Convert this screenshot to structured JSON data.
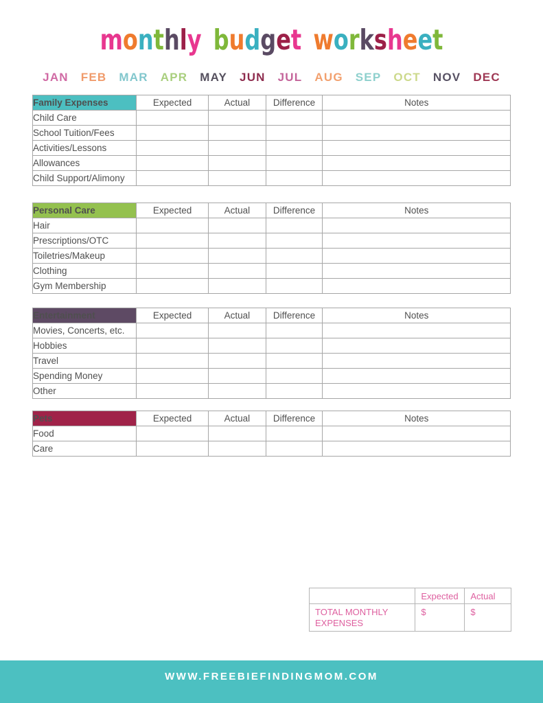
{
  "title": {
    "text": "monthly budget worksheet",
    "words": [
      {
        "letters": [
          {
            "c": "m",
            "color": "#e8378f"
          },
          {
            "c": "o",
            "color": "#ef7b2e"
          },
          {
            "c": "n",
            "color": "#3ab0c0"
          },
          {
            "c": "t",
            "color": "#7fb83a"
          },
          {
            "c": "h",
            "color": "#5a4a63"
          },
          {
            "c": "l",
            "color": "#9c2048"
          },
          {
            "c": "y",
            "color": "#e8378f"
          }
        ]
      },
      {
        "letters": [
          {
            "c": "b",
            "color": "#7fb83a"
          },
          {
            "c": "u",
            "color": "#ef7b2e"
          },
          {
            "c": "d",
            "color": "#3ab0c0"
          },
          {
            "c": "g",
            "color": "#5a4a63"
          },
          {
            "c": "e",
            "color": "#9c2048"
          },
          {
            "c": "t",
            "color": "#e8378f"
          }
        ]
      },
      {
        "letters": [
          {
            "c": "w",
            "color": "#ef7b2e"
          },
          {
            "c": "o",
            "color": "#3ab0c0"
          },
          {
            "c": "r",
            "color": "#7fb83a"
          },
          {
            "c": "k",
            "color": "#5a4a63"
          },
          {
            "c": "s",
            "color": "#9c2048"
          },
          {
            "c": "h",
            "color": "#e8378f"
          },
          {
            "c": "e",
            "color": "#ef7b2e"
          },
          {
            "c": "e",
            "color": "#3ab0c0"
          },
          {
            "c": "t",
            "color": "#7fb83a"
          }
        ]
      }
    ]
  },
  "months": [
    {
      "label": "JAN",
      "color": "#d06aa4"
    },
    {
      "label": "FEB",
      "color": "#f09b6b"
    },
    {
      "label": "MAR",
      "color": "#82c7cd"
    },
    {
      "label": "APR",
      "color": "#a9cf7e"
    },
    {
      "label": "MAY",
      "color": "#55505e"
    },
    {
      "label": "JUN",
      "color": "#8e2c4e"
    },
    {
      "label": "JUL",
      "color": "#c4649a"
    },
    {
      "label": "AUG",
      "color": "#f2a06e"
    },
    {
      "label": "SEP",
      "color": "#8ed0cd"
    },
    {
      "label": "OCT",
      "color": "#ccd98b"
    },
    {
      "label": "NOV",
      "color": "#585264"
    },
    {
      "label": "DEC",
      "color": "#9e3753"
    }
  ],
  "value_columns": [
    "Expected",
    "Actual",
    "Difference",
    "Notes"
  ],
  "sections": [
    {
      "title": "Family Expenses",
      "color": "#4cbfc1",
      "rows": [
        "Child Care",
        "School Tuition/Fees",
        "Activities/Lessons",
        "Allowances",
        "Child Support/Alimony"
      ]
    },
    {
      "title": "Personal Care",
      "color": "#94c14f",
      "rows": [
        "Hair",
        "Prescriptions/OTC",
        "Toiletries/Makeup",
        "Clothing",
        "Gym Membership"
      ]
    },
    {
      "title": "Entertainment",
      "color": "#5e4a64",
      "rows": [
        "Movies, Concerts, etc.",
        "Hobbies",
        "Travel",
        "Spending Money",
        "Other"
      ]
    },
    {
      "title": "Pets",
      "color": "#a02349",
      "rows": [
        "Food",
        "Care"
      ]
    }
  ],
  "total": {
    "label": "Total Monthly Expenses",
    "columns": [
      "Expected",
      "Actual"
    ],
    "values": [
      "$",
      "$"
    ],
    "text_color": "#de5f9f"
  },
  "footer": {
    "text": "WWW.FREEBIEFINDINGMOM.COM",
    "bg": "#4cc0c1"
  }
}
